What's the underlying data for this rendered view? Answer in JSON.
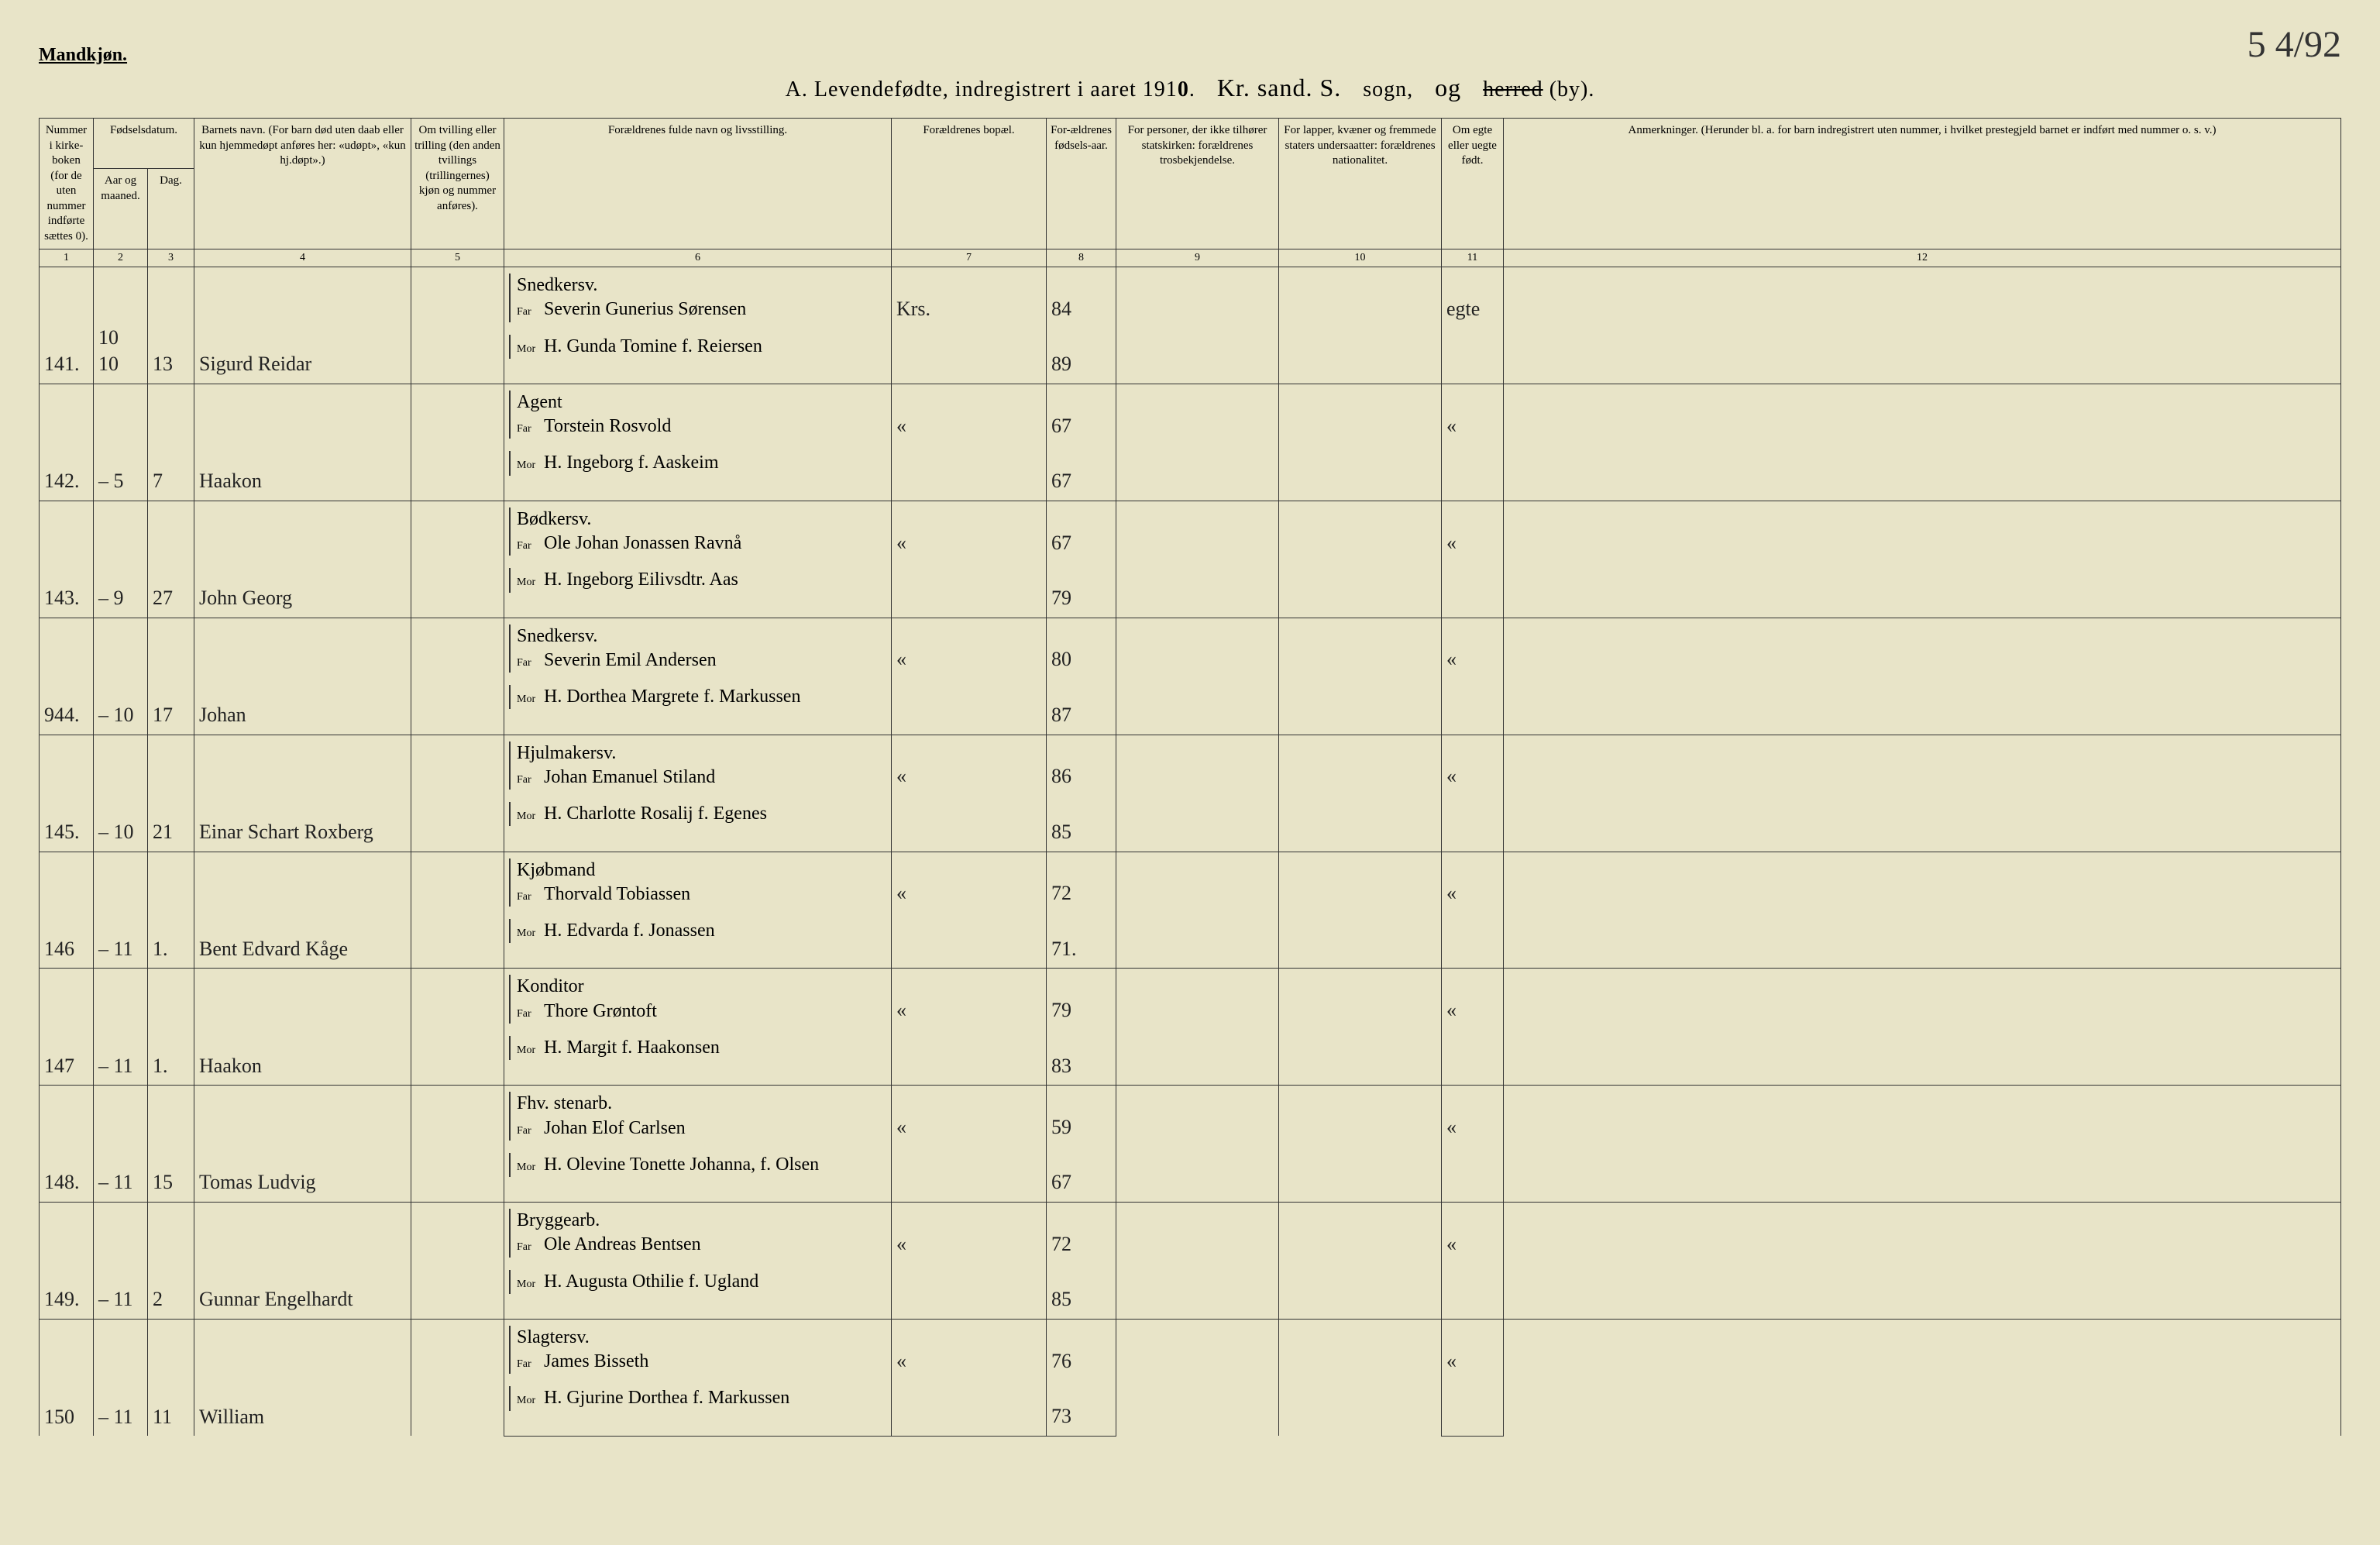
{
  "header": {
    "gender_label": "Mandkjøn.",
    "corner_note": "5 4/92",
    "title_prefix": "A. Levendefødte, indregistrert i aaret 191",
    "year_suffix": "0",
    "parish_hand": "Kr. sand. S.",
    "sogn_label": "sogn,",
    "og_hand": "og",
    "by_label": "(by).",
    "by_strike": "herred"
  },
  "columns": {
    "c1": "Nummer i kirke-boken (for de uten nummer indførte sættes 0).",
    "c2": "Aar og maaned.",
    "c3": "Dag.",
    "c2_3_group": "Fødselsdatum.",
    "c4": "Barnets navn.\n(For barn død uten daab eller kun hjemmedøpt anføres her: «udøpt», «kun hj.døpt».)",
    "c5": "Om tvilling eller trilling (den anden tvillings (trillingernes) kjøn og nummer anføres).",
    "c6": "Forældrenes fulde navn og livsstilling.",
    "c7": "Forældrenes bopæl.",
    "c8": "For-ældrenes fødsels-aar.",
    "c9": "For personer, der ikke tilhører statskirken: forældrenes trosbekjendelse.",
    "c10": "For lapper, kvæner og fremmede staters undersaatter: forældrenes nationalitet.",
    "c11": "Om egte eller uegte født.",
    "c12": "Anmerkninger.\n(Herunder bl. a. for barn indregistrert uten nummer, i hvilket prestegjeld barnet er indført med nummer o. s. v.)"
  },
  "colnums": [
    "1",
    "2",
    "3",
    "4",
    "5",
    "6",
    "7",
    "8",
    "9",
    "10",
    "11",
    "12"
  ],
  "rows": [
    {
      "num": "141.",
      "mon": "10  10",
      "day": "13",
      "name": "Sigurd Reidar",
      "far_occ": "Snedkersv.",
      "far": "Severin Gunerius Sørensen",
      "mor": "H. Gunda Tomine f. Reiersen",
      "bopel": "Krs.",
      "far_aar": "84",
      "mor_aar": "89",
      "egte": "egte"
    },
    {
      "num": "142.",
      "mon": "–   5",
      "day": "7",
      "name": "Haakon",
      "far_occ": "Agent",
      "far": "Torstein Rosvold",
      "mor": "H. Ingeborg f. Aaskeim",
      "bopel": "«",
      "far_aar": "67",
      "mor_aar": "67",
      "egte": "«"
    },
    {
      "num": "143.",
      "mon": "–   9",
      "day": "27",
      "name": "John Georg",
      "far_occ": "Bødkersv.",
      "far": "Ole Johan Jonassen Ravnå",
      "mor": "H. Ingeborg Eilivsdtr. Aas",
      "bopel": "«",
      "far_aar": "67",
      "mor_aar": "79",
      "egte": "«"
    },
    {
      "num": "944.",
      "mon": "–  10",
      "day": "17",
      "name": "Johan",
      "far_occ": "Snedkersv.",
      "far": "Severin Emil Andersen",
      "mor": "H. Dorthea Margrete f. Markussen",
      "bopel": "«",
      "far_aar": "80",
      "mor_aar": "87",
      "egte": "«"
    },
    {
      "num": "145.",
      "mon": "–  10",
      "day": "21",
      "name": "Einar Schart Roxberg",
      "far_occ": "Hjulmakersv.",
      "far": "Johan Emanuel Stiland",
      "mor": "H. Charlotte Rosalij f. Egenes",
      "bopel": "«",
      "far_aar": "86",
      "mor_aar": "85",
      "egte": "«"
    },
    {
      "num": "146",
      "mon": "–  11",
      "day": "1.",
      "name": "Bent Edvard Kåge",
      "far_occ": "Kjøbmand",
      "far": "Thorvald Tobiassen",
      "mor": "H. Edvarda f. Jonassen",
      "bopel": "«",
      "far_aar": "72",
      "mor_aar": "71.",
      "egte": "«"
    },
    {
      "num": "147",
      "mon": "–  11",
      "day": "1.",
      "name": "Haakon",
      "far_occ": "Konditor",
      "far": "Thore Grøntoft",
      "mor": "H. Margit f. Haakonsen",
      "bopel": "«",
      "far_aar": "79",
      "mor_aar": "83",
      "egte": "«"
    },
    {
      "num": "148.",
      "mon": "–  11",
      "day": "15",
      "name": "Tomas Ludvig",
      "far_occ": "Fhv. stenarb.",
      "far": "Johan Elof Carlsen",
      "mor": "H. Olevine Tonette Johanna, f. Olsen",
      "bopel": "«",
      "far_aar": "59",
      "mor_aar": "67",
      "egte": "«"
    },
    {
      "num": "149.",
      "mon": "–  11",
      "day": "2",
      "name": "Gunnar Engelhardt",
      "far_occ": "Bryggearb.",
      "far": "Ole Andreas Bentsen",
      "mor": "H. Augusta Othilie f. Ugland",
      "bopel": "«",
      "far_aar": "72",
      "mor_aar": "85",
      "egte": "«"
    },
    {
      "num": "150",
      "mon": "–  11",
      "day": "11",
      "name": "William",
      "far_occ": "Slagtersv.",
      "far": "James Bisseth",
      "mor": "H. Gjurine Dorthea f. Markussen",
      "bopel": "«",
      "far_aar": "76",
      "mor_aar": "73",
      "egte": "«"
    }
  ]
}
